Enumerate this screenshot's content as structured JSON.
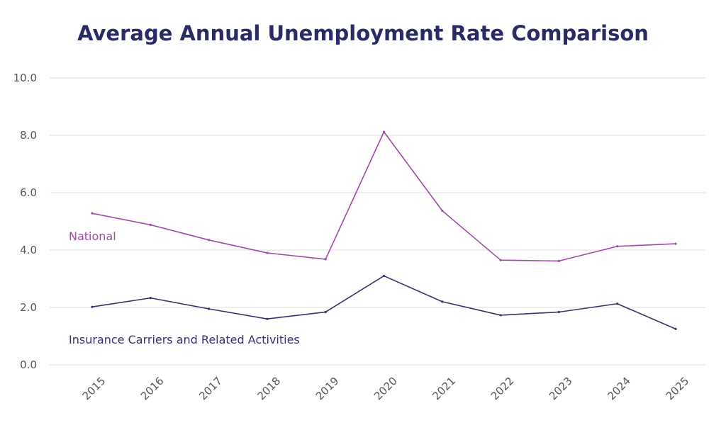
{
  "chart_data": {
    "type": "line",
    "title": "Average Annual Unemployment Rate Comparison",
    "xlabel": "",
    "ylabel": "",
    "ylim": [
      0,
      10
    ],
    "yticks": [
      "0.0",
      "2.0",
      "4.0",
      "6.0",
      "8.0",
      "10.0"
    ],
    "categories": [
      "2015",
      "2016",
      "2017",
      "2018",
      "2019",
      "2020",
      "2021",
      "2022",
      "2023",
      "2024",
      "2025"
    ],
    "grid": true,
    "series": [
      {
        "name": "National",
        "color": "#a04aa8",
        "values": [
          5.28,
          4.88,
          4.35,
          3.9,
          3.68,
          8.12,
          5.37,
          3.65,
          3.62,
          4.13,
          4.22
        ]
      },
      {
        "name": "Insurance Carriers and Related Activities",
        "color": "#33336e",
        "values": [
          2.02,
          2.33,
          1.95,
          1.6,
          1.84,
          3.1,
          2.2,
          1.73,
          1.84,
          2.13,
          1.25
        ]
      }
    ]
  }
}
